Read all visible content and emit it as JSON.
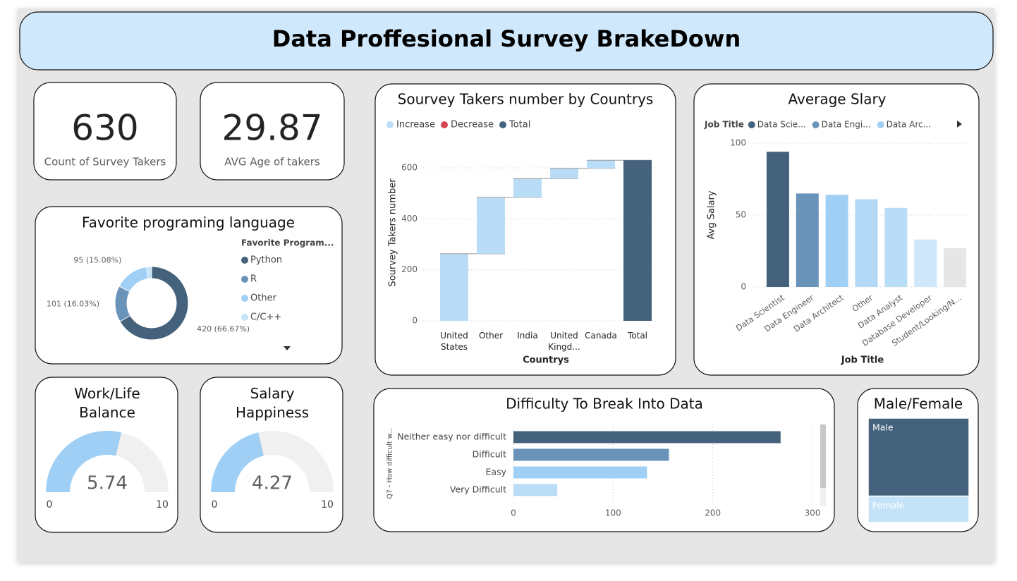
{
  "header": {
    "title": "Data Proffesional Survey BrakeDown"
  },
  "kpis": [
    {
      "value": 630,
      "label": "Count of Survey Takers"
    },
    {
      "value": 29.87,
      "label": "AVG Age of takers"
    }
  ],
  "chart_data": [
    {
      "type": "pie",
      "donut": true,
      "title": "Favorite programing language",
      "legend_title": "Favorite Program...",
      "categories": [
        "Python",
        "R",
        "Other",
        "C/C++"
      ],
      "values": [
        420,
        101,
        95,
        14
      ],
      "value_labels": [
        "420 (66.67%)",
        "101 (16.03%)",
        "95 (15.08%)",
        null
      ],
      "colors": [
        "#44627c",
        "#6a93ba",
        "#a0cff5",
        "#c5e3f8"
      ]
    },
    {
      "type": "gauge",
      "title": "Work/Life Balance",
      "value": 5.74,
      "ylim": [
        0,
        10
      ],
      "color": "#a0cff5"
    },
    {
      "type": "gauge",
      "title": "Salary Happiness",
      "value": 4.27,
      "ylim": [
        0,
        10
      ],
      "color": "#a0cff5"
    },
    {
      "type": "waterfall",
      "title": "Sourvey Takers number by Countrys",
      "legend": [
        {
          "name": "Increase",
          "color": "#b9dcf7"
        },
        {
          "name": "Decrease",
          "color": "#d64550"
        },
        {
          "name": "Total",
          "color": "#44627c"
        }
      ],
      "categories": [
        "United States",
        "Other",
        "India",
        "United Kingd...",
        "Canada",
        "Total"
      ],
      "values": [
        263,
        221,
        74,
        40,
        32,
        630
      ],
      "xlabel": "Countrys",
      "ylabel": "Sourvey Takers number",
      "ylim": [
        0,
        650
      ],
      "yticks": [
        0,
        200,
        400,
        600
      ],
      "grid": true
    },
    {
      "type": "bar",
      "title": "Average Slary",
      "legend_title": "Job Title",
      "legend": [
        {
          "name": "Data Scie...",
          "color": "#44627c"
        },
        {
          "name": "Data Engi...",
          "color": "#6a93ba"
        },
        {
          "name": "Data Arc...",
          "color": "#a0cff5"
        }
      ],
      "categories": [
        "Data Scientist",
        "Data Engineer",
        "Data Architect",
        "Other",
        "Data Analyst",
        "Database Developer",
        "Student/Looking/N..."
      ],
      "values": [
        94,
        65,
        64,
        61,
        55,
        33,
        27
      ],
      "colors": [
        "#44627c",
        "#6a93ba",
        "#a0cff5",
        "#b3d9f7",
        "#b9dcf7",
        "#cfe7fa",
        "#e6e6e6"
      ],
      "xlabel": "Job Title",
      "ylabel": "Avg Salary",
      "ylim": [
        0,
        100
      ],
      "yticks": [
        0,
        50,
        100
      ],
      "grid": true
    },
    {
      "type": "hbar",
      "title": "Difficulty To Break Into Data",
      "ylabel": "Q7 - How difficult w...",
      "categories": [
        "Neither easy nor difficult",
        "Difficult",
        "Easy",
        "Very Difficult"
      ],
      "values": [
        268,
        156,
        134,
        44
      ],
      "colors": [
        "#44627c",
        "#6a93ba",
        "#a0cff5",
        "#b9dcf7"
      ],
      "xlim": [
        0,
        300
      ],
      "xticks": [
        0,
        100,
        200,
        300
      ],
      "grid": true
    },
    {
      "type": "treemap",
      "title": "Male/Female",
      "categories": [
        "Male",
        "Female"
      ],
      "values": [
        471,
        159
      ],
      "colors": [
        "#44627c",
        "#c5e3f8"
      ]
    }
  ]
}
